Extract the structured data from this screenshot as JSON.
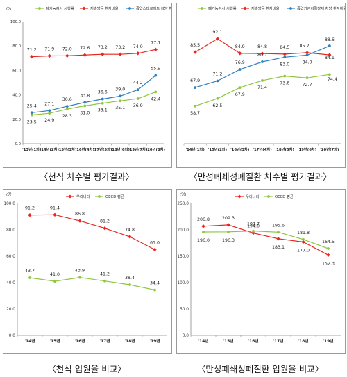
{
  "captions": [
    "〈천식 차수별 평가결과〉",
    "〈만성폐쇄성폐질환 차수별 평가결과〉",
    "〈천식 입원율 비교〉",
    "〈만성폐쇄성폐질환 입원율 비교〉"
  ],
  "chart_data": [
    {
      "type": "line",
      "unit_label": "(%)",
      "categories": [
        "'13년(1차)",
        "'14년(2차)",
        "'15년(3차)",
        "'16년(4차)",
        "'17년(5차)",
        "'18년(6차)",
        "'19년(7차)",
        "'20년(8차)"
      ],
      "ylim": [
        0,
        100
      ],
      "yticks": [
        "0.0",
        "20.0",
        "40.0",
        "60.0",
        "80.0",
        "100.0"
      ],
      "ytick_values": [
        0,
        20,
        40,
        60,
        80,
        100
      ],
      "grid": false,
      "legend_position": "top",
      "series": [
        {
          "name": "폐기능검사 시행률",
          "color": "#8dc63f",
          "marker": "circle",
          "values": [
            23.5,
            24.9,
            28.3,
            31.0,
            33.1,
            35.1,
            36.9,
            42.4
          ],
          "labels": [
            "23.5",
            "24.9",
            "28.3",
            "31.0",
            "33.1",
            "35.1",
            "36.9",
            "42.4"
          ]
        },
        {
          "name": "지속방문 환자비율",
          "color": "#e8261e",
          "marker": "diamond",
          "values": [
            71.2,
            71.9,
            72.0,
            72.6,
            73.2,
            73.2,
            74.0,
            77.1
          ],
          "labels": [
            "71.2",
            "71.9",
            "72.0",
            "72.6",
            "73.2",
            "73.2",
            "74.0",
            "77.1"
          ]
        },
        {
          "name": "흡입스테로이드 처방 환자비율",
          "color": "#2e7fc0",
          "marker": "circle",
          "values": [
            25.4,
            27.1,
            30.6,
            33.8,
            36.6,
            39.0,
            44.2,
            55.9
          ],
          "labels": [
            "25.4",
            "27.1",
            "30.6",
            "33.8",
            "36.6",
            "39.0",
            "44.2",
            "55.9"
          ]
        }
      ]
    },
    {
      "type": "line",
      "categories": [
        "'14년(1차)",
        "'15년(2차)",
        "'16년(3차)",
        "'17년(4차)",
        "'18년(5차)",
        "'19년(6차)",
        "'20년(7차)"
      ],
      "ylim": [
        40,
        100
      ],
      "grid": false,
      "legend_position": "top",
      "series": [
        {
          "name": "폐기능검사 시행률",
          "color": "#8dc63f",
          "marker": "circle",
          "values": [
            58.7,
            62.5,
            67.9,
            71.4,
            73.6,
            72.7,
            74.4
          ],
          "labels": [
            "58.7",
            "62.5",
            "67.9",
            "71.4",
            "73.6",
            "72.7",
            "74.4"
          ]
        },
        {
          "name": "지속방문 환자비율",
          "color": "#e8261e",
          "marker": "diamond",
          "values": [
            85.5,
            92.1,
            84.9,
            84.8,
            84.5,
            85.2,
            84.1
          ],
          "labels": [
            "85.5",
            "92.1",
            "84.9",
            "84.8",
            "84.5",
            "85.2",
            "84.1"
          ]
        },
        {
          "name": "흡입기관지확장제 처방 환자비율",
          "color": "#2e7fc0",
          "marker": "circle",
          "values": [
            67.9,
            71.2,
            76.9,
            80.7,
            83.0,
            84.0,
            88.6
          ],
          "labels": [
            "67.9",
            "71.2",
            "76.9",
            "80.7",
            "83.0",
            "84.0",
            "88.6"
          ]
        }
      ]
    },
    {
      "type": "line",
      "unit_label": "(명)",
      "categories": [
        "'14년",
        "'15년",
        "'16년",
        "'17년",
        "'18년",
        "'19년"
      ],
      "ylim": [
        0,
        100
      ],
      "yticks": [
        "0.0",
        "20.0",
        "40.0",
        "60.0",
        "80.0",
        "100.0"
      ],
      "ytick_values": [
        0,
        20,
        40,
        60,
        80,
        100
      ],
      "grid": false,
      "legend_position": "top",
      "series": [
        {
          "name": "우리나라",
          "color": "#e8261e",
          "marker": "diamond",
          "values": [
            91.2,
            91.4,
            86.8,
            81.2,
            74.8,
            65.0
          ],
          "labels": [
            "91.2",
            "91.4",
            "86.8",
            "81.2",
            "74.8",
            "65.0"
          ]
        },
        {
          "name": "OECD 평균",
          "color": "#8dc63f",
          "marker": "circle",
          "values": [
            43.7,
            41.0,
            43.9,
            41.2,
            38.4,
            34.4
          ],
          "labels": [
            "43.7",
            "41.0",
            "43.9",
            "41.2",
            "38.4",
            "34.4"
          ]
        }
      ]
    },
    {
      "type": "line",
      "unit_label": "(명)",
      "categories": [
        "'14년",
        "'15년",
        "'16년",
        "'17년",
        "'18년",
        "'19년"
      ],
      "ylim": [
        0,
        250
      ],
      "yticks": [
        "0.0",
        "50.0",
        "100.0",
        "150.0",
        "200.0",
        "250.0"
      ],
      "ytick_values": [
        0,
        50,
        100,
        150,
        200,
        250
      ],
      "grid": false,
      "legend_position": "top",
      "series": [
        {
          "name": "우리나라",
          "color": "#e8261e",
          "marker": "diamond",
          "values": [
            206.8,
            209.3,
            194.0,
            183.1,
            177.0,
            152.3
          ],
          "labels": [
            "206.8",
            "209.3",
            "194.0",
            "183.1",
            "177.0",
            "152.3"
          ]
        },
        {
          "name": "OECD 평균",
          "color": "#8dc63f",
          "marker": "circle",
          "values": [
            196.0,
            196.3,
            197.7,
            195.6,
            181.8,
            164.5
          ],
          "labels": [
            "196.0",
            "196.3",
            "197.7",
            "195.6",
            "181.8",
            "164.5"
          ]
        }
      ]
    }
  ]
}
